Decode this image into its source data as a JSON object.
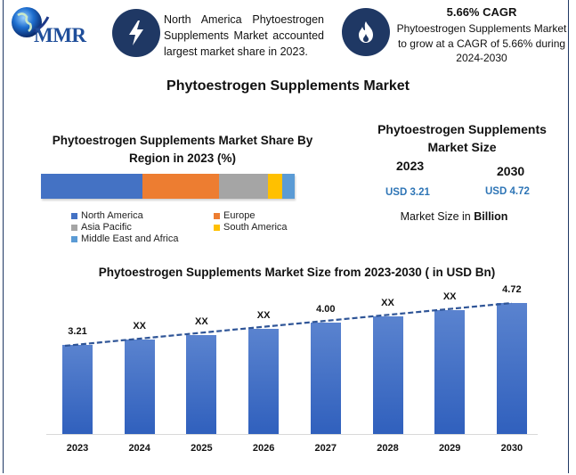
{
  "header": {
    "logo_text": "MMR",
    "insight_text": "North America Phytoestrogen Supplements Market accounted largest market share in 2023.",
    "cagr_title": "5.66% CAGR",
    "cagr_text": "Phytoestrogen Supplements Market to grow at a CAGR of 5.66% during 2024-2030",
    "icons": [
      "lightning-icon",
      "flame-icon"
    ]
  },
  "main_title": "Phytoestrogen Supplements Market",
  "market_size": {
    "title": "Phytoestrogen Supplements Market Size",
    "year_start": "2023",
    "year_end": "2030",
    "value_start": "USD 3.21",
    "value_end": "USD 4.72",
    "unit_prefix": "Market Size in ",
    "unit_bold": "Billion"
  },
  "colors": {
    "navy": "#1f3864",
    "north_america": "#4472c4",
    "europe": "#ed7d31",
    "asia_pacific": "#a5a5a5",
    "south_america": "#ffc000",
    "mea": "#5b9bd5",
    "bar": "#3f6cc6",
    "usd_text": "#2e75b6"
  },
  "chart_data": [
    {
      "type": "bar",
      "subtype": "stacked-horizontal",
      "title": "Phytoestrogen Supplements Market Share By Region in 2023 (%)",
      "categories": [
        "North America",
        "Europe",
        "Asia Pacific",
        "South America",
        "Middle East and Africa"
      ],
      "values": [
        40,
        30,
        19.5,
        5.6,
        4.9
      ],
      "legend": [
        "North America",
        "Europe",
        "Asia Pacific",
        "South America",
        "Middle East and Africa"
      ],
      "legend_position": "bottom",
      "xlabel": "",
      "ylabel": ""
    },
    {
      "type": "bar",
      "title": "Phytoestrogen Supplements Market Size from 2023-2030 ( in USD Bn)",
      "categories": [
        "2023",
        "2024",
        "2025",
        "2026",
        "2027",
        "2028",
        "2029",
        "2030"
      ],
      "values": [
        3.21,
        3.39,
        3.58,
        3.79,
        4.0,
        4.23,
        4.47,
        4.72
      ],
      "data_labels": [
        "3.21",
        "XX",
        "XX",
        "XX",
        "4.00",
        "XX",
        "XX",
        "4.72"
      ],
      "trendline": "dashed linear",
      "xlabel": "",
      "ylabel": "",
      "grid": false
    }
  ]
}
